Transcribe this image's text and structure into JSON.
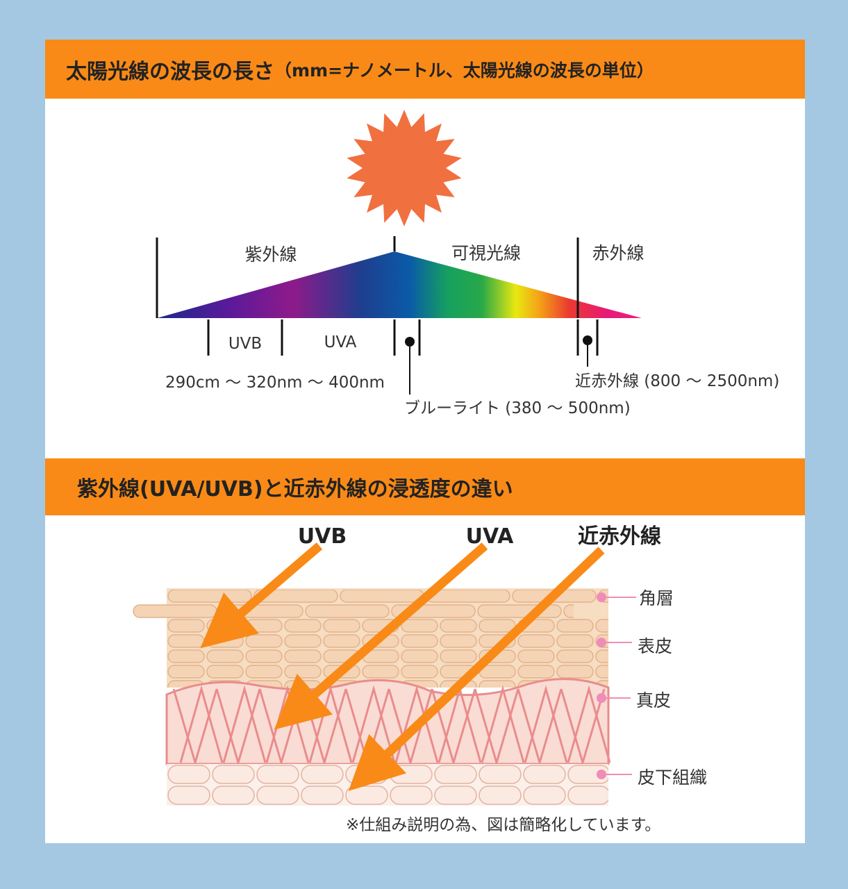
{
  "header_spectrum": {
    "title": "太陽光線の波長の長さ",
    "subtitle": "（mm=ナノメートル、太陽光線の波長の単位）"
  },
  "spectrum": {
    "regions": {
      "uv": "紫外線",
      "visible": "可視光線",
      "ir": "赤外線"
    },
    "bands": {
      "uvb": "UVB",
      "uva": "UVA"
    },
    "wavelength_label": "290cm 〜 320nm 〜 400nm",
    "blue_light_label": "ブルーライト (380 〜 500nm)",
    "near_ir_label": "近赤外線 (800 〜 2500nm)",
    "colors": {
      "sun": "#f07040",
      "arrow": "#f98a17"
    }
  },
  "header_penetration": {
    "title": "紫外線(UVA/UVB)と近赤外線の浸透度の違い"
  },
  "penetration": {
    "rays": {
      "uvb": "UVB",
      "uva": "UVA",
      "near_ir": "近赤外線"
    },
    "layers": {
      "stratum_corneum": "角層",
      "epidermis": "表皮",
      "dermis": "真皮",
      "subcutaneous": "皮下組織"
    },
    "note": "※仕組み説明の為、図は簡略化しています。"
  }
}
